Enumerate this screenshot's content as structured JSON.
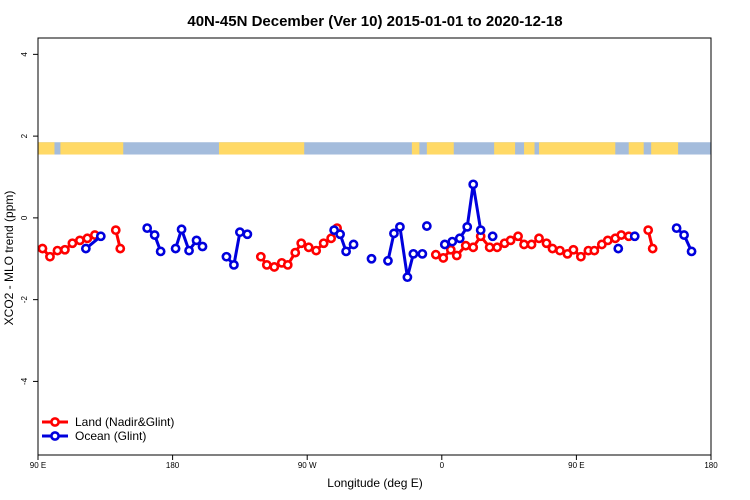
{
  "chart_data": {
    "type": "line",
    "title": "40N-45N December (Ver 10)   2015-01-01 to 2020-12-18",
    "xlabel": "Longitude (deg E)",
    "ylabel": "XCO2 - MLO trend (ppm)",
    "xlim": [
      90,
      540
    ],
    "ylim": [
      -5.8,
      4.4
    ],
    "x_ticks": [
      {
        "value": 90,
        "label": "90 E"
      },
      {
        "value": 180,
        "label": "180"
      },
      {
        "value": 270,
        "label": "90 W"
      },
      {
        "value": 360,
        "label": "0"
      },
      {
        "value": 450,
        "label": "90 E"
      },
      {
        "value": 540,
        "label": "180"
      }
    ],
    "y_ticks": [
      {
        "value": 4,
        "label": "4"
      },
      {
        "value": 2,
        "label": "2"
      },
      {
        "value": 0,
        "label": "0"
      },
      {
        "value": -2,
        "label": "-2"
      },
      {
        "value": -4,
        "label": "-4"
      }
    ],
    "land_ocean_strip": {
      "y_range": [
        1.55,
        1.85
      ],
      "land_color": "#ffd966",
      "ocean_color": "#a4bcdc",
      "land_x_ranges": [
        [
          90,
          101
        ],
        [
          105,
          147
        ],
        [
          211,
          268
        ],
        [
          340,
          345
        ],
        [
          350,
          368
        ],
        [
          395,
          409
        ],
        [
          415,
          422
        ],
        [
          425,
          476
        ],
        [
          485,
          495
        ],
        [
          500,
          518
        ]
      ]
    },
    "series": [
      {
        "name": "Land (Nadir&Glint)",
        "color": "#ff0000",
        "segments": [
          [
            [
              93,
              -0.75
            ],
            [
              98,
              -0.95
            ],
            [
              103,
              -0.8
            ],
            [
              108,
              -0.78
            ],
            [
              113,
              -0.62
            ],
            [
              118,
              -0.55
            ],
            [
              123,
              -0.5
            ],
            [
              128,
              -0.42
            ]
          ],
          [
            [
              142,
              -0.3
            ],
            [
              145,
              -0.75
            ]
          ],
          [
            [
              239,
              -0.95
            ],
            [
              243,
              -1.15
            ],
            [
              248,
              -1.2
            ],
            [
              253,
              -1.1
            ],
            [
              257,
              -1.15
            ],
            [
              262,
              -0.85
            ],
            [
              266,
              -0.62
            ],
            [
              271,
              -0.72
            ],
            [
              276,
              -0.8
            ],
            [
              281,
              -0.62
            ],
            [
              286,
              -0.5
            ],
            [
              290,
              -0.25
            ]
          ],
          [
            [
              356,
              -0.9
            ],
            [
              361,
              -0.98
            ],
            [
              366,
              -0.78
            ],
            [
              370,
              -0.92
            ],
            [
              376,
              -0.68
            ],
            [
              381,
              -0.72
            ],
            [
              386,
              -0.45
            ],
            [
              392,
              -0.72
            ],
            [
              397,
              -0.72
            ],
            [
              402,
              -0.62
            ],
            [
              406,
              -0.55
            ],
            [
              411,
              -0.45
            ],
            [
              415,
              -0.65
            ],
            [
              420,
              -0.65
            ],
            [
              425,
              -0.5
            ],
            [
              430,
              -0.62
            ],
            [
              434,
              -0.75
            ],
            [
              439,
              -0.8
            ],
            [
              444,
              -0.88
            ],
            [
              448,
              -0.78
            ],
            [
              453,
              -0.95
            ],
            [
              458,
              -0.8
            ],
            [
              462,
              -0.8
            ],
            [
              467,
              -0.65
            ],
            [
              471,
              -0.55
            ],
            [
              476,
              -0.5
            ],
            [
              480,
              -0.42
            ],
            [
              485,
              -0.45
            ]
          ],
          [
            [
              498,
              -0.3
            ],
            [
              501,
              -0.75
            ]
          ]
        ]
      },
      {
        "name": "Ocean (Glint)",
        "color": "#0000dd",
        "segments": [
          [
            [
              122,
              -0.75
            ],
            [
              132,
              -0.45
            ]
          ],
          [
            [
              163,
              -0.25
            ],
            [
              168,
              -0.42
            ],
            [
              172,
              -0.82
            ]
          ],
          [
            [
              182,
              -0.75
            ],
            [
              186,
              -0.28
            ],
            [
              191,
              -0.8
            ],
            [
              196,
              -0.55
            ],
            [
              200,
              -0.7
            ]
          ],
          [
            [
              216,
              -0.95
            ],
            [
              221,
              -1.15
            ],
            [
              225,
              -0.35
            ],
            [
              230,
              -0.4
            ]
          ],
          [
            [
              288,
              -0.3
            ],
            [
              292,
              -0.4
            ],
            [
              296,
              -0.82
            ],
            [
              301,
              -0.65
            ]
          ],
          [
            [
              313,
              -1.0
            ]
          ],
          [
            [
              324,
              -1.05
            ],
            [
              328,
              -0.38
            ],
            [
              332,
              -0.22
            ],
            [
              337,
              -1.45
            ],
            [
              341,
              -0.88
            ],
            [
              347,
              -0.88
            ]
          ],
          [
            [
              350,
              -0.2
            ]
          ],
          [
            [
              362,
              -0.65
            ],
            [
              367,
              -0.58
            ],
            [
              372,
              -0.5
            ],
            [
              377,
              -0.22
            ],
            [
              381,
              0.82
            ],
            [
              386,
              -0.3
            ]
          ],
          [
            [
              394,
              -0.45
            ]
          ],
          [
            [
              478,
              -0.75
            ]
          ],
          [
            [
              489,
              -0.45
            ]
          ],
          [
            [
              517,
              -0.25
            ],
            [
              522,
              -0.42
            ],
            [
              527,
              -0.82
            ]
          ]
        ]
      }
    ],
    "legend": {
      "position": "bottom-left",
      "entries": [
        {
          "label": "Land (Nadir&Glint)",
          "color": "#ff0000"
        },
        {
          "label": "Ocean (Glint)",
          "color": "#0000dd"
        }
      ]
    }
  }
}
